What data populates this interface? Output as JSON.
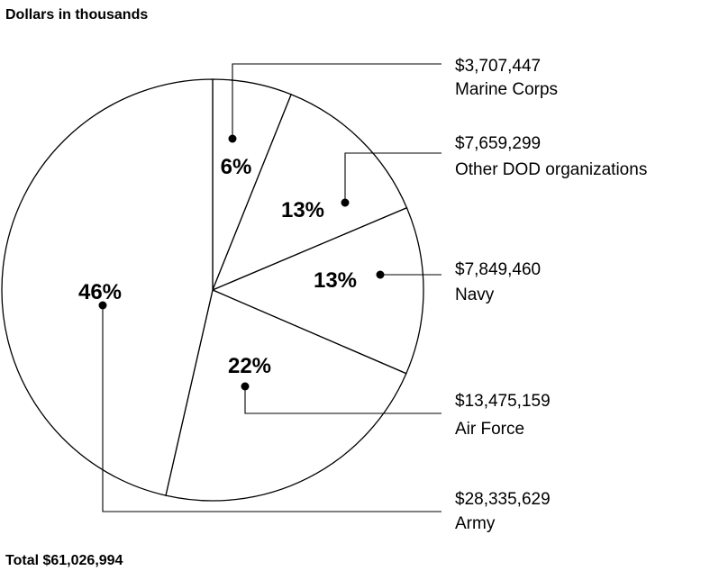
{
  "chart_data": {
    "type": "pie",
    "units_label": "Dollars in thousands",
    "total_label": "Total $61,026,994",
    "start_angle_deg": 0,
    "direction": "clockwise",
    "slices": [
      {
        "name": "Marine Corps",
        "value": 3707447,
        "amount_label": "$3,707,447",
        "percent_label": "6%"
      },
      {
        "name": "Other DOD organizations",
        "value": 7659299,
        "amount_label": "$7,659,299",
        "percent_label": "13%"
      },
      {
        "name": "Navy",
        "value": 7849460,
        "amount_label": "$7,849,460",
        "percent_label": "13%"
      },
      {
        "name": "Air Force",
        "value": 13475159,
        "amount_label": "$13,475,159",
        "percent_label": "22%"
      },
      {
        "name": "Army",
        "value": 28335629,
        "amount_label": "$28,335,629",
        "percent_label": "46%"
      }
    ],
    "colors": {
      "fill": "#ffffff",
      "stroke": "#000000",
      "text": "#000000"
    }
  }
}
